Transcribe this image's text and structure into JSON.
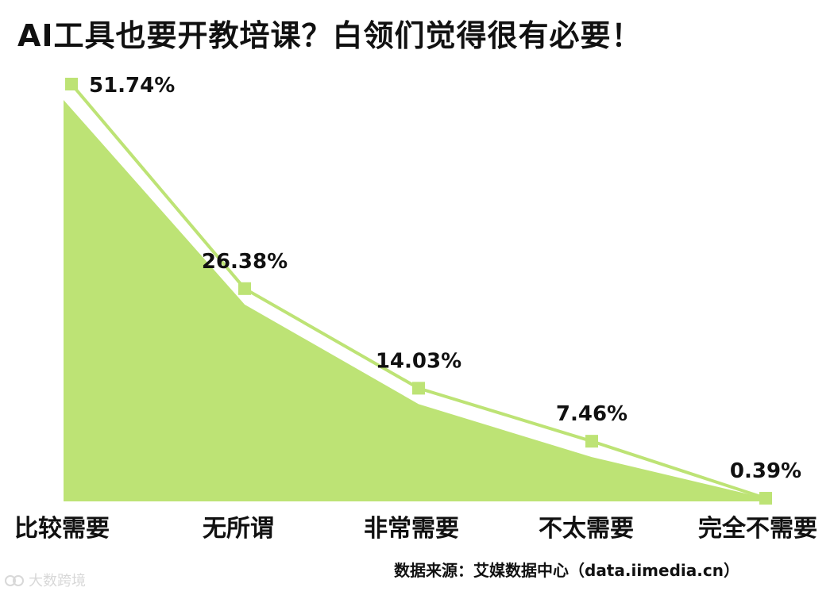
{
  "chart_data": {
    "type": "area",
    "title": "AI工具也要开教培课？白领们觉得很有必要！",
    "categories": [
      "比较需要",
      "无所谓",
      "非常需要",
      "不太需要",
      "完全不需要"
    ],
    "values": [
      51.74,
      26.38,
      14.03,
      7.46,
      0.39
    ],
    "value_labels": [
      "51.74%",
      "26.38%",
      "14.03%",
      "7.46%",
      "0.39%"
    ],
    "unit": "%",
    "ylim": [
      0,
      51.74
    ],
    "grid": false,
    "legend": "none",
    "colors": {
      "area": "#bde375",
      "line": "#bde375",
      "text": "#111111"
    }
  },
  "footer": {
    "source": "数据来源：艾媒数据中心（data.iimedia.cn）",
    "watermark": "大数跨境"
  }
}
